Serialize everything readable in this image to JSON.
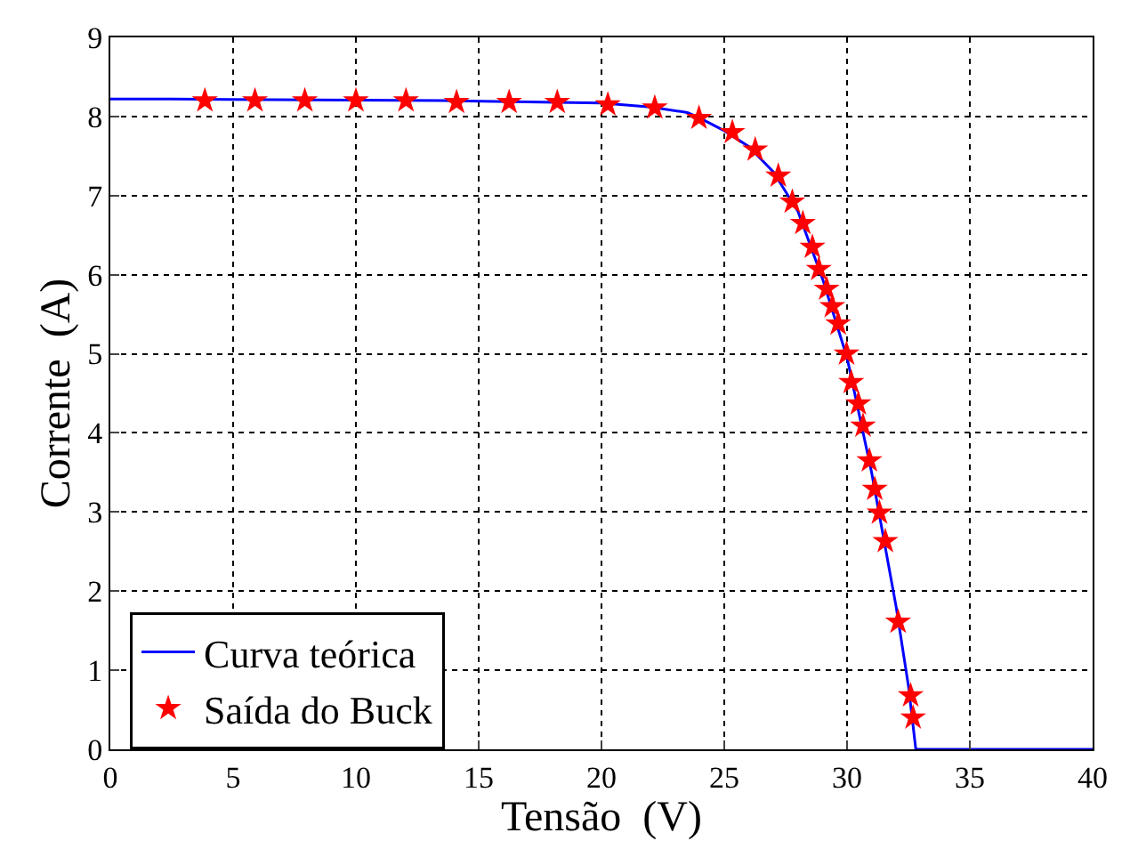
{
  "chart_data": {
    "type": "line",
    "xlabel": "Tensão  (V)",
    "ylabel": "Corrente  (A)",
    "xlim": [
      0,
      40
    ],
    "ylim": [
      0,
      9
    ],
    "xticks": [
      0,
      5,
      10,
      15,
      20,
      25,
      30,
      35,
      40
    ],
    "yticks": [
      0,
      1,
      2,
      3,
      4,
      5,
      6,
      7,
      8,
      9
    ],
    "grid": true,
    "legend": "bottom left",
    "series": [
      {
        "name": "Curva teórica",
        "color": "#0000ff",
        "marker": "none",
        "line_style": "solid",
        "x": [
          0,
          2.5,
          13.5,
          20,
          22,
          23.5,
          24,
          25,
          26,
          27,
          28,
          29,
          30,
          31,
          32,
          32.5,
          32.8,
          40
        ],
        "values": [
          8.22,
          8.22,
          8.2,
          8.17,
          8.12,
          8.05,
          7.98,
          7.82,
          7.62,
          7.3,
          6.8,
          5.95,
          4.95,
          3.5,
          1.8,
          0.8,
          0,
          0
        ]
      },
      {
        "name": "Saída do Buck",
        "type": "scatter",
        "color": "#ff0000",
        "marker": "star",
        "x": [
          3.85,
          5.89,
          7.92,
          10.0,
          12.04,
          14.1,
          16.24,
          18.2,
          20.26,
          22.17,
          23.97,
          25.33,
          26.26,
          27.2,
          27.77,
          28.2,
          28.59,
          28.85,
          29.17,
          29.4,
          29.64,
          29.98,
          30.17,
          30.46,
          30.65,
          30.91,
          31.13,
          31.32,
          31.56,
          32.08,
          32.59,
          32.69
        ],
        "values": [
          8.2,
          8.2,
          8.2,
          8.2,
          8.2,
          8.18,
          8.18,
          8.18,
          8.15,
          8.11,
          7.98,
          7.8,
          7.58,
          7.25,
          6.92,
          6.65,
          6.35,
          6.07,
          5.82,
          5.6,
          5.38,
          5.0,
          4.64,
          4.37,
          4.09,
          3.65,
          3.29,
          2.99,
          2.63,
          1.61,
          0.68,
          0.4
        ]
      }
    ]
  }
}
